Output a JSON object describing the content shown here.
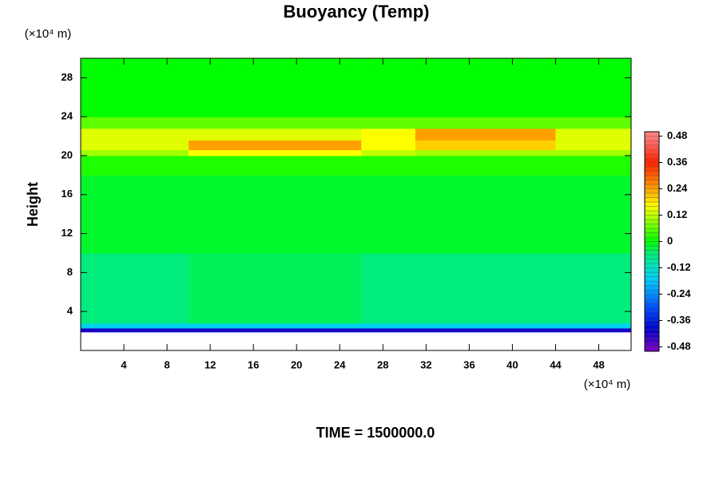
{
  "chart_data": {
    "type": "heatmap",
    "title": "Buoyancy (Temp)",
    "ylabel": "Height",
    "y_unit_label": "(×10⁴ m)",
    "x_unit_label": "(×10⁴ m)",
    "footer": "TIME = 1500000.0",
    "xlim": [
      0,
      51
    ],
    "ylim": [
      0,
      30
    ],
    "xticks": [
      4,
      8,
      12,
      16,
      20,
      24,
      28,
      32,
      36,
      40,
      44,
      48
    ],
    "yticks": [
      4,
      8,
      12,
      16,
      20,
      24,
      28
    ],
    "xbins": [
      0,
      10,
      26,
      31,
      44,
      51
    ],
    "ybins": [
      0,
      1.9,
      2.3,
      2.8,
      10,
      18,
      20,
      20.6,
      21.6,
      22.8,
      24,
      30
    ],
    "z": [
      [
        null,
        null,
        null,
        null,
        null
      ],
      [
        -0.42,
        -0.42,
        -0.42,
        -0.42,
        -0.42
      ],
      [
        -0.16,
        -0.16,
        -0.16,
        -0.16,
        -0.16
      ],
      [
        -0.06,
        -0.04,
        -0.06,
        -0.06,
        -0.06
      ],
      [
        -0.02,
        -0.02,
        -0.02,
        -0.02,
        -0.02
      ],
      [
        0.02,
        0.02,
        0.02,
        0.02,
        0.02
      ],
      [
        0.1,
        0.16,
        0.12,
        0.1,
        0.1
      ],
      [
        0.14,
        0.24,
        0.16,
        0.2,
        0.14
      ],
      [
        0.14,
        0.14,
        0.16,
        0.24,
        0.14
      ],
      [
        0.06,
        0.06,
        0.06,
        0.06,
        0.06
      ],
      [
        0,
        0,
        0,
        0,
        0
      ]
    ],
    "clim": [
      -0.5,
      0.5
    ],
    "cticks": [
      0.48,
      0.36,
      0.24,
      0.12,
      0,
      -0.12,
      -0.24,
      -0.36,
      -0.48
    ],
    "colormap": [
      {
        "value": -0.5,
        "color": "#8000c0"
      },
      {
        "value": -0.4,
        "color": "#0000c8"
      },
      {
        "value": -0.3,
        "color": "#0050ff"
      },
      {
        "value": -0.18,
        "color": "#00c8ff"
      },
      {
        "value": -0.1,
        "color": "#00e8b0"
      },
      {
        "value": -0.05,
        "color": "#00ee70"
      },
      {
        "value": 0,
        "color": "#00ff00"
      },
      {
        "value": 0.1,
        "color": "#a0ff00"
      },
      {
        "value": 0.16,
        "color": "#ffff00"
      },
      {
        "value": 0.24,
        "color": "#ffa000"
      },
      {
        "value": 0.36,
        "color": "#ff2000"
      },
      {
        "value": 0.48,
        "color": "#ff8080"
      }
    ]
  }
}
